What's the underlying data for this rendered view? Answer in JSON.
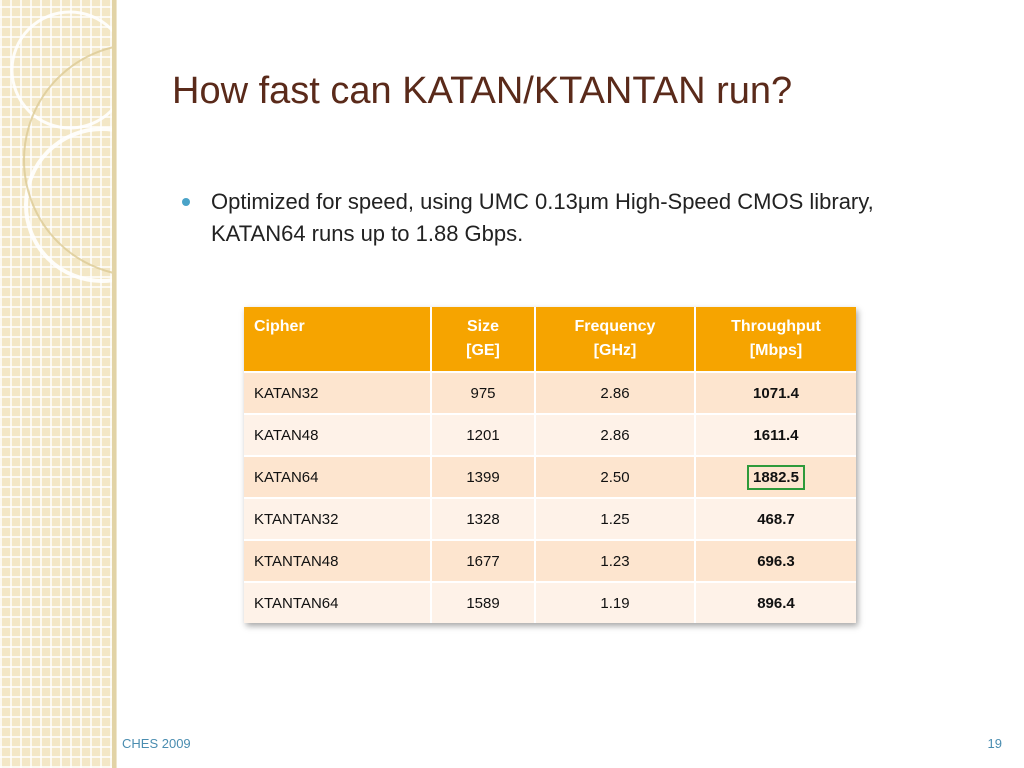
{
  "slide": {
    "title": "How fast can KATAN/KTANTAN run?",
    "bullet": "Optimized for speed, using UMC 0.13μm High-Speed CMOS library, KATAN64 runs up to 1.88 Gbps.",
    "footer_left": "CHES 2009",
    "page_number": "19"
  },
  "table": {
    "headers": [
      {
        "line1": "Cipher",
        "line2": ""
      },
      {
        "line1": "Size",
        "line2": "[GE]"
      },
      {
        "line1": "Frequency",
        "line2": "[GHz]"
      },
      {
        "line1": "Throughput",
        "line2": "[Mbps]"
      }
    ],
    "rows": [
      [
        "KATAN32",
        "975",
        "2.86",
        "1071.4"
      ],
      [
        "KATAN48",
        "1201",
        "2.86",
        "1611.4"
      ],
      [
        "KATAN64",
        "1399",
        "2.50",
        "1882.5"
      ],
      [
        "KTANTAN32",
        "1328",
        "1.25",
        "468.7"
      ],
      [
        "KTANTAN48",
        "1677",
        "1.23",
        "696.3"
      ],
      [
        "KTANTAN64",
        "1589",
        "1.19",
        "896.4"
      ]
    ],
    "highlighted_row": 2
  },
  "colors": {
    "header_bg": "#f6a400",
    "row_odd": "#fde5cf",
    "row_even": "#fef2e8",
    "title": "#5a2a1a",
    "bullet": "#4aa3c8",
    "highlight_border": "#2e9a3a"
  }
}
